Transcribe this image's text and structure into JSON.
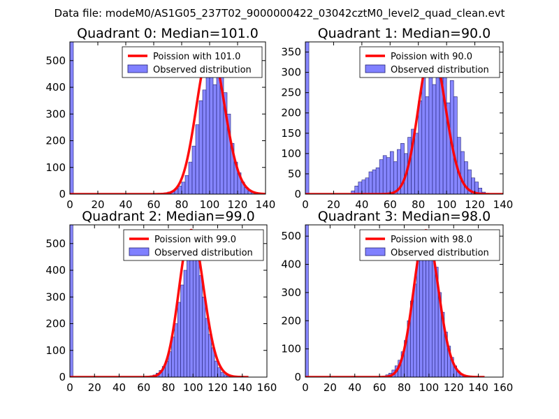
{
  "figure_title": "Data file: modeM0/AS1G05_237T02_9000000422_03042cztM0_level2_quad_clean.evt",
  "colors": {
    "bar_fill": "#8080ff",
    "bar_stroke": "#202070",
    "fit_line": "#ff0000",
    "axis": "#000000"
  },
  "chart_data": [
    {
      "type": "bar",
      "title": "Quadrant 0: Median=101.0",
      "legend": {
        "fit": "Poission with 101.0",
        "observed": "Observed distribution",
        "placement": "top-right"
      },
      "xlim": [
        0,
        140
      ],
      "ylim": [
        0,
        570
      ],
      "xticks": [
        0,
        20,
        40,
        60,
        80,
        100,
        120,
        140
      ],
      "yticks": [
        0,
        100,
        200,
        300,
        400,
        500
      ],
      "bin_width": 2.5,
      "bars": [
        [
          0,
          570
        ],
        [
          65,
          3
        ],
        [
          67.5,
          5
        ],
        [
          70,
          8
        ],
        [
          72.5,
          12
        ],
        [
          75,
          20
        ],
        [
          77.5,
          30
        ],
        [
          80,
          45
        ],
        [
          82.5,
          70
        ],
        [
          85,
          120
        ],
        [
          87.5,
          180
        ],
        [
          90,
          260
        ],
        [
          92.5,
          350
        ],
        [
          95,
          390
        ],
        [
          97.5,
          470
        ],
        [
          100,
          540
        ],
        [
          102.5,
          410
        ],
        [
          105,
          540
        ],
        [
          107.5,
          510
        ],
        [
          110,
          380
        ],
        [
          112.5,
          300
        ],
        [
          115,
          190
        ],
        [
          117.5,
          120
        ],
        [
          120,
          80
        ],
        [
          122.5,
          45
        ],
        [
          125,
          25
        ],
        [
          127.5,
          12
        ],
        [
          130,
          6
        ],
        [
          132.5,
          3
        ]
      ],
      "poisson_mean": 101.0,
      "poisson_peak": 545,
      "fit_range": [
        0,
        140
      ]
    },
    {
      "type": "bar",
      "title": "Quadrant 1: Median=90.0",
      "legend": {
        "fit": "Poission with 90.0",
        "observed": "Observed distribution",
        "placement": "top-right"
      },
      "xlim": [
        0,
        140
      ],
      "ylim": [
        0,
        375
      ],
      "xticks": [
        0,
        20,
        40,
        60,
        80,
        100,
        120,
        140
      ],
      "yticks": [
        0,
        50,
        100,
        150,
        200,
        250,
        300,
        350
      ],
      "bin_width": 2.5,
      "bars": [
        [
          0,
          375
        ],
        [
          32.5,
          8
        ],
        [
          35,
          20
        ],
        [
          37.5,
          30
        ],
        [
          40,
          35
        ],
        [
          42.5,
          40
        ],
        [
          45,
          55
        ],
        [
          47.5,
          60
        ],
        [
          50,
          65
        ],
        [
          52.5,
          85
        ],
        [
          55,
          95
        ],
        [
          57.5,
          90
        ],
        [
          60,
          105
        ],
        [
          62.5,
          80
        ],
        [
          65,
          110
        ],
        [
          67.5,
          125
        ],
        [
          70,
          100
        ],
        [
          72.5,
          140
        ],
        [
          75,
          160
        ],
        [
          77.5,
          150
        ],
        [
          80,
          230
        ],
        [
          82.5,
          290
        ],
        [
          85,
          240
        ],
        [
          87.5,
          340
        ],
        [
          90,
          270
        ],
        [
          92.5,
          330
        ],
        [
          95,
          320
        ],
        [
          97.5,
          310
        ],
        [
          100,
          225
        ],
        [
          102.5,
          280
        ],
        [
          105,
          240
        ],
        [
          107.5,
          140
        ],
        [
          110,
          105
        ],
        [
          112.5,
          80
        ],
        [
          115,
          60
        ],
        [
          117.5,
          40
        ],
        [
          120,
          30
        ],
        [
          122.5,
          15
        ],
        [
          125,
          5
        ]
      ],
      "poisson_mean": 90.0,
      "poisson_peak": 358,
      "fit_range": [
        0,
        140
      ]
    },
    {
      "type": "bar",
      "title": "Quadrant 2: Median=99.0",
      "legend": {
        "fit": "Poission with 99.0",
        "observed": "Observed distribution",
        "placement": "top-right"
      },
      "xlim": [
        0,
        160
      ],
      "ylim": [
        0,
        570
      ],
      "xticks": [
        0,
        20,
        40,
        60,
        80,
        100,
        120,
        140,
        160
      ],
      "yticks": [
        0,
        100,
        200,
        300,
        400,
        500
      ],
      "bin_width": 2.5,
      "bars": [
        [
          0,
          570
        ],
        [
          62.5,
          3
        ],
        [
          65,
          5
        ],
        [
          67.5,
          8
        ],
        [
          70,
          15
        ],
        [
          72.5,
          25
        ],
        [
          75,
          40
        ],
        [
          77.5,
          60
        ],
        [
          80,
          95
        ],
        [
          82.5,
          150
        ],
        [
          85,
          200
        ],
        [
          87.5,
          280
        ],
        [
          90,
          345
        ],
        [
          92.5,
          400
        ],
        [
          95,
          470
        ],
        [
          97.5,
          550
        ],
        [
          100,
          510
        ],
        [
          102.5,
          450
        ],
        [
          105,
          380
        ],
        [
          107.5,
          300
        ],
        [
          110,
          220
        ],
        [
          112.5,
          160
        ],
        [
          115,
          110
        ],
        [
          117.5,
          60
        ],
        [
          120,
          35
        ],
        [
          122.5,
          18
        ],
        [
          125,
          8
        ],
        [
          127.5,
          4
        ]
      ],
      "poisson_mean": 99.0,
      "poisson_peak": 550,
      "fit_range": [
        0,
        145
      ]
    },
    {
      "type": "bar",
      "title": "Quadrant 3: Median=98.0",
      "legend": {
        "fit": "Poission with 98.0",
        "observed": "Observed distribution",
        "placement": "top-right"
      },
      "xlim": [
        0,
        160
      ],
      "ylim": [
        0,
        540
      ],
      "xticks": [
        0,
        20,
        40,
        60,
        80,
        100,
        120,
        140,
        160
      ],
      "yticks": [
        0,
        100,
        200,
        300,
        400,
        500
      ],
      "bin_width": 2.5,
      "bars": [
        [
          0,
          540
        ],
        [
          37.5,
          3
        ],
        [
          62.5,
          4
        ],
        [
          65,
          8
        ],
        [
          67.5,
          14
        ],
        [
          70,
          25
        ],
        [
          72.5,
          40
        ],
        [
          75,
          60
        ],
        [
          77.5,
          90
        ],
        [
          80,
          130
        ],
        [
          82.5,
          200
        ],
        [
          85,
          270
        ],
        [
          87.5,
          330
        ],
        [
          90,
          420
        ],
        [
          92.5,
          460
        ],
        [
          95,
          510
        ],
        [
          97.5,
          480
        ],
        [
          100,
          470
        ],
        [
          102.5,
          430
        ],
        [
          105,
          390
        ],
        [
          107.5,
          300
        ],
        [
          110,
          230
        ],
        [
          112.5,
          160
        ],
        [
          115,
          110
        ],
        [
          117.5,
          70
        ],
        [
          120,
          40
        ],
        [
          122.5,
          22
        ],
        [
          125,
          10
        ],
        [
          127.5,
          4
        ]
      ],
      "poisson_mean": 98.0,
      "poisson_peak": 520,
      "fit_range": [
        0,
        145
      ]
    }
  ]
}
